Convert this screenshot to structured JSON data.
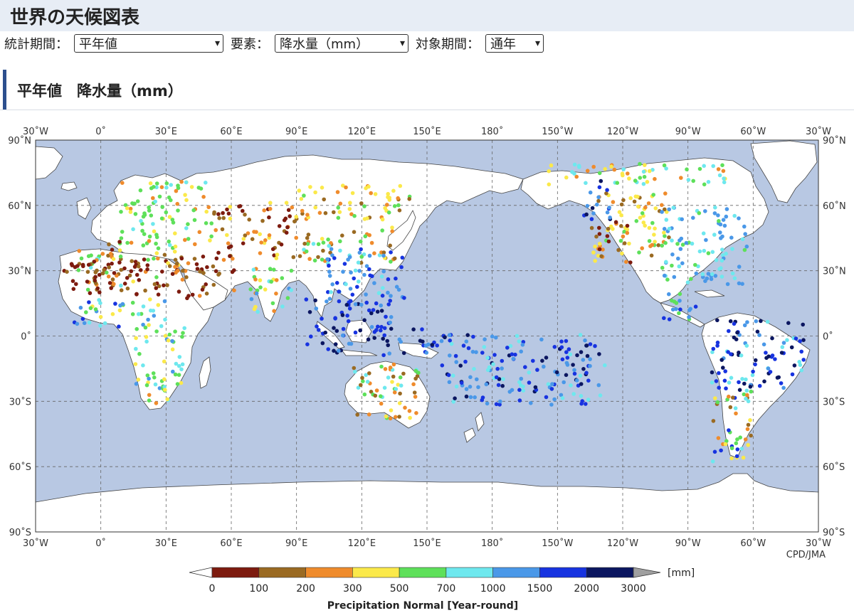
{
  "header": {
    "title": "世界の天候図表"
  },
  "controls": {
    "period_label": "統計期間：",
    "period_value": "平年値",
    "element_label": "要素：",
    "element_value": "降水量（mm）",
    "target_label": "対象期間：",
    "target_value": "通年"
  },
  "section": {
    "title": "平年値　降水量（mm）"
  },
  "map": {
    "lon_labels": [
      "30˚W",
      "0˚",
      "30˚E",
      "60˚E",
      "90˚E",
      "120˚E",
      "150˚E",
      "180˚",
      "150˚W",
      "120˚W",
      "90˚W",
      "60˚W",
      "30˚W"
    ],
    "lat_labels": [
      "90˚N",
      "60˚N",
      "30˚N",
      "0˚",
      "30˚S",
      "60˚S",
      "90˚S"
    ],
    "credit": "CPD/JMA",
    "ocean_color": "#b8c8e3",
    "land_color": "#ffffff"
  },
  "legend": {
    "ticks": [
      "0",
      "100",
      "200",
      "300",
      "500",
      "700",
      "1000",
      "1500",
      "2000",
      "3000"
    ],
    "colors": [
      "#7d1b0f",
      "#9a6a22",
      "#ef8b2c",
      "#fbe94a",
      "#5ee05a",
      "#6ee8ee",
      "#4a98e8",
      "#1733e0",
      "#0b1660"
    ],
    "low_color": "#ffffff",
    "high_color": "#a0a0a0",
    "unit": "[mm]",
    "caption": "Precipitation Normal [Year-round]"
  }
}
